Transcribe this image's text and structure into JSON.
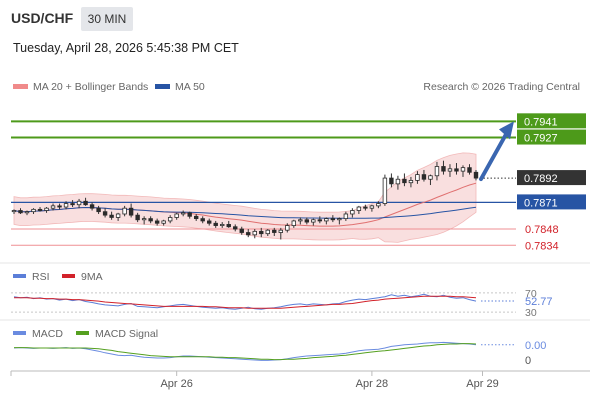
{
  "header": {
    "symbol": "USD/CHF",
    "timeframe": "30 MIN",
    "datetime": "Tuesday, April 28, 2026 5:45:38 PM CET"
  },
  "legend": {
    "ma20": "MA 20 + Bollinger Bands",
    "ma50": "MA 50",
    "credit": "Research © 2026 Trading Central",
    "rsi": "RSI",
    "rsi_ma": "9MA",
    "macd": "MACD",
    "macd_signal": "MACD Signal"
  },
  "colors": {
    "green": "#4d9a1a",
    "blue": "#2754a4",
    "red": "#e0565c",
    "arrow": "#3a66b0",
    "band": "#f7d4d4",
    "price_box": "#333333",
    "rsi_line": "#5b7ed8",
    "rsi_ma": "#d2222a",
    "macd_line": "#6a8be0",
    "signal_line": "#55a020"
  },
  "chart_data": [
    {
      "type": "candlestick",
      "ylim": [
        0.7823,
        0.7962
      ],
      "levels": [
        {
          "value": 0.7941,
          "label": "0.7941",
          "kind": "resistance",
          "color": "#4d9a1a"
        },
        {
          "value": 0.7927,
          "label": "0.7927",
          "kind": "resistance",
          "color": "#4d9a1a"
        },
        {
          "value": 0.7892,
          "label": "0.7892",
          "kind": "last-price",
          "color": "#333333"
        },
        {
          "value": 0.7871,
          "label": "0.7871",
          "kind": "pivot",
          "color": "#2754a4"
        },
        {
          "value": 0.7848,
          "label": "0.7848",
          "kind": "support",
          "color": "#e0565c"
        },
        {
          "value": 0.7834,
          "label": "0.7834",
          "kind": "support",
          "color": "#e0565c"
        }
      ],
      "projection": {
        "from": 0.7892,
        "to": 0.7941
      },
      "x_ticks": [
        {
          "index": 25,
          "label": "Apr 26"
        },
        {
          "index": 55,
          "label": "Apr 28"
        },
        {
          "index": 72,
          "label": "Apr 29"
        }
      ],
      "candles": [
        [
          0.7863,
          0.7865,
          0.7861,
          0.7864
        ],
        [
          0.7864,
          0.7866,
          0.7861,
          0.7862
        ],
        [
          0.7862,
          0.7864,
          0.786,
          0.7863
        ],
        [
          0.7863,
          0.7866,
          0.7861,
          0.7865
        ],
        [
          0.7865,
          0.7867,
          0.7863,
          0.7864
        ],
        [
          0.7864,
          0.7867,
          0.7862,
          0.7866
        ],
        [
          0.7866,
          0.787,
          0.7864,
          0.7868
        ],
        [
          0.7868,
          0.787,
          0.7865,
          0.7867
        ],
        [
          0.7867,
          0.7872,
          0.7865,
          0.787
        ],
        [
          0.787,
          0.7873,
          0.7867,
          0.7869
        ],
        [
          0.7869,
          0.7874,
          0.7866,
          0.7872
        ],
        [
          0.7872,
          0.7875,
          0.7868,
          0.7869
        ],
        [
          0.7869,
          0.7871,
          0.7864,
          0.7866
        ],
        [
          0.7866,
          0.7868,
          0.7861,
          0.7863
        ],
        [
          0.7863,
          0.7866,
          0.7858,
          0.786
        ],
        [
          0.786,
          0.7863,
          0.7856,
          0.7858
        ],
        [
          0.7858,
          0.7862,
          0.7855,
          0.7861
        ],
        [
          0.7861,
          0.7868,
          0.7859,
          0.7866
        ],
        [
          0.7866,
          0.787,
          0.7858,
          0.786
        ],
        [
          0.786,
          0.7862,
          0.7854,
          0.7856
        ],
        [
          0.7856,
          0.7859,
          0.7852,
          0.7857
        ],
        [
          0.7857,
          0.7859,
          0.7853,
          0.7855
        ],
        [
          0.7855,
          0.7857,
          0.7851,
          0.7853
        ],
        [
          0.7853,
          0.7856,
          0.7851,
          0.7855
        ],
        [
          0.7855,
          0.786,
          0.7853,
          0.7858
        ],
        [
          0.7858,
          0.7862,
          0.7856,
          0.7861
        ],
        [
          0.7861,
          0.7864,
          0.7859,
          0.7862
        ],
        [
          0.7862,
          0.7863,
          0.7857,
          0.7859
        ],
        [
          0.7859,
          0.7861,
          0.7855,
          0.7857
        ],
        [
          0.7857,
          0.7859,
          0.7853,
          0.7855
        ],
        [
          0.7855,
          0.7857,
          0.7851,
          0.7853
        ],
        [
          0.7853,
          0.7855,
          0.7849,
          0.7851
        ],
        [
          0.7851,
          0.7854,
          0.7849,
          0.7852
        ],
        [
          0.7852,
          0.7855,
          0.7849,
          0.785
        ],
        [
          0.785,
          0.7852,
          0.7846,
          0.7848
        ],
        [
          0.7848,
          0.785,
          0.7843,
          0.7845
        ],
        [
          0.7845,
          0.7848,
          0.7841,
          0.7843
        ],
        [
          0.7843,
          0.7848,
          0.784,
          0.7846
        ],
        [
          0.7846,
          0.7849,
          0.7841,
          0.7844
        ],
        [
          0.7844,
          0.7848,
          0.7842,
          0.7847
        ],
        [
          0.7847,
          0.7849,
          0.7842,
          0.7845
        ],
        [
          0.7845,
          0.7849,
          0.7839,
          0.7847
        ],
        [
          0.7847,
          0.7853,
          0.7845,
          0.7851
        ],
        [
          0.7851,
          0.7856,
          0.7849,
          0.7855
        ],
        [
          0.7855,
          0.7858,
          0.7852,
          0.7856
        ],
        [
          0.7856,
          0.7858,
          0.7852,
          0.7854
        ],
        [
          0.7854,
          0.7857,
          0.7851,
          0.7856
        ],
        [
          0.7856,
          0.7859,
          0.7853,
          0.7855
        ],
        [
          0.7855,
          0.7858,
          0.7852,
          0.7857
        ],
        [
          0.7857,
          0.786,
          0.7854,
          0.7856
        ],
        [
          0.7856,
          0.7858,
          0.7852,
          0.7857
        ],
        [
          0.7857,
          0.7863,
          0.7855,
          0.7861
        ],
        [
          0.7861,
          0.7866,
          0.7858,
          0.7864
        ],
        [
          0.7864,
          0.7868,
          0.7861,
          0.7867
        ],
        [
          0.7867,
          0.7869,
          0.7864,
          0.7866
        ],
        [
          0.7866,
          0.7869,
          0.7863,
          0.7868
        ],
        [
          0.7868,
          0.7872,
          0.7866,
          0.787
        ],
        [
          0.787,
          0.7895,
          0.7868,
          0.7892
        ],
        [
          0.7892,
          0.7896,
          0.7884,
          0.7887
        ],
        [
          0.7887,
          0.7894,
          0.7882,
          0.7891
        ],
        [
          0.7891,
          0.7896,
          0.7885,
          0.7888
        ],
        [
          0.7888,
          0.7893,
          0.7884,
          0.789
        ],
        [
          0.789,
          0.7898,
          0.7887,
          0.7895
        ],
        [
          0.7895,
          0.7899,
          0.7889,
          0.7891
        ],
        [
          0.7891,
          0.7895,
          0.7886,
          0.7894
        ],
        [
          0.7894,
          0.7906,
          0.789,
          0.7902
        ],
        [
          0.7902,
          0.7907,
          0.7895,
          0.7898
        ],
        [
          0.7898,
          0.7904,
          0.7893,
          0.79
        ],
        [
          0.79,
          0.7905,
          0.7895,
          0.7898
        ],
        [
          0.7898,
          0.7903,
          0.7893,
          0.7901
        ],
        [
          0.7901,
          0.7904,
          0.7895,
          0.7897
        ],
        [
          0.7897,
          0.7899,
          0.789,
          0.7892
        ]
      ]
    },
    {
      "type": "line",
      "name": "RSI",
      "ylim": [
        22,
        78
      ],
      "levels": [
        {
          "value": 70,
          "label": "70"
        },
        {
          "value": 30,
          "label": "30"
        }
      ],
      "last_label": "52.77",
      "series": [
        {
          "name": "RSI",
          "values": [
            62,
            60,
            61,
            58,
            60,
            57,
            58,
            55,
            57,
            54,
            56,
            52,
            50,
            47,
            45,
            44,
            43,
            46,
            48,
            42,
            41,
            40,
            39,
            41,
            43,
            45,
            46,
            44,
            42,
            40,
            39,
            38,
            39,
            37,
            36,
            38,
            40,
            37,
            36,
            38,
            39,
            41,
            44,
            46,
            47,
            45,
            47,
            46,
            45,
            47,
            48,
            52,
            55,
            57,
            56,
            58,
            60,
            62,
            66,
            63,
            65,
            62,
            64,
            67,
            63,
            62,
            65,
            61,
            59,
            60,
            56,
            53
          ]
        },
        {
          "name": "9MA",
          "values": [
            60,
            60,
            60,
            59,
            59,
            58,
            58,
            57,
            57,
            56,
            56,
            55,
            54,
            53,
            51,
            50,
            49,
            48,
            47,
            46,
            45,
            44,
            43,
            42,
            42,
            42,
            42,
            42,
            42,
            42,
            41,
            41,
            40,
            39,
            39,
            39,
            38,
            38,
            38,
            38,
            38,
            38,
            39,
            40,
            41,
            42,
            43,
            44,
            45,
            46,
            46,
            47,
            48,
            50,
            52,
            54,
            55,
            57,
            58,
            59,
            60,
            61,
            62,
            63,
            63,
            63,
            63,
            63,
            62,
            62,
            61,
            60
          ]
        }
      ]
    },
    {
      "type": "line",
      "name": "MACD",
      "ylim": [
        -0.0004,
        0.0003
      ],
      "last_label": "0.00",
      "zero_label": "0",
      "series": [
        {
          "name": "MACD",
          "values": [
            0.0001,
            0.00011,
            0.0001,
            9e-05,
            0.0001,
            0.0001,
            9e-05,
            0.0001,
            0.00011,
            9e-05,
            0.0001,
            8e-05,
            5e-05,
            2e-05,
            -2e-05,
            -5e-05,
            -8e-05,
            -9e-05,
            -8e-05,
            -0.00011,
            -0.00013,
            -0.00014,
            -0.00015,
            -0.00015,
            -0.00014,
            -0.00012,
            -0.0001,
            -0.0001,
            -0.00011,
            -0.00012,
            -0.00013,
            -0.00014,
            -0.00015,
            -0.00016,
            -0.00017,
            -0.00018,
            -0.00019,
            -0.0002,
            -0.00021,
            -0.00021,
            -0.0002,
            -0.00019,
            -0.00017,
            -0.00014,
            -0.00012,
            -0.0001,
            -9e-05,
            -8e-05,
            -7e-05,
            -6e-05,
            -5e-05,
            -3e-05,
            0.0,
            3e-05,
            5e-05,
            6e-05,
            7e-05,
            0.0001,
            0.00014,
            0.00016,
            0.00018,
            0.00019,
            0.0002,
            0.00022,
            0.00023,
            0.00023,
            0.00024,
            0.00023,
            0.00022,
            0.00021,
            0.0002,
            0.00018
          ]
        },
        {
          "name": "MACD Signal",
          "values": [
            0.00011,
            0.00011,
            0.00011,
            0.0001,
            0.0001,
            0.0001,
            0.0001,
            0.0001,
            0.0001,
            0.0001,
            0.0001,
            0.0001,
            9e-05,
            8e-05,
            6e-05,
            4e-05,
            1e-05,
            -1e-05,
            -3e-05,
            -5e-05,
            -7e-05,
            -9e-05,
            -0.0001,
            -0.00011,
            -0.00012,
            -0.00012,
            -0.00012,
            -0.00012,
            -0.00012,
            -0.00012,
            -0.00012,
            -0.00013,
            -0.00013,
            -0.00014,
            -0.00014,
            -0.00015,
            -0.00016,
            -0.00017,
            -0.00018,
            -0.00018,
            -0.00019,
            -0.00019,
            -0.00018,
            -0.00018,
            -0.00017,
            -0.00016,
            -0.00014,
            -0.00013,
            -0.00012,
            -0.00011,
            -9e-05,
            -8e-05,
            -6e-05,
            -4e-05,
            -2e-05,
            0.0,
            2e-05,
            3e-05,
            5e-05,
            7e-05,
            9e-05,
            0.00011,
            0.00013,
            0.00015,
            0.00016,
            0.00018,
            0.00019,
            0.0002,
            0.0002,
            0.00021,
            0.00021,
            0.0002
          ]
        }
      ]
    }
  ]
}
